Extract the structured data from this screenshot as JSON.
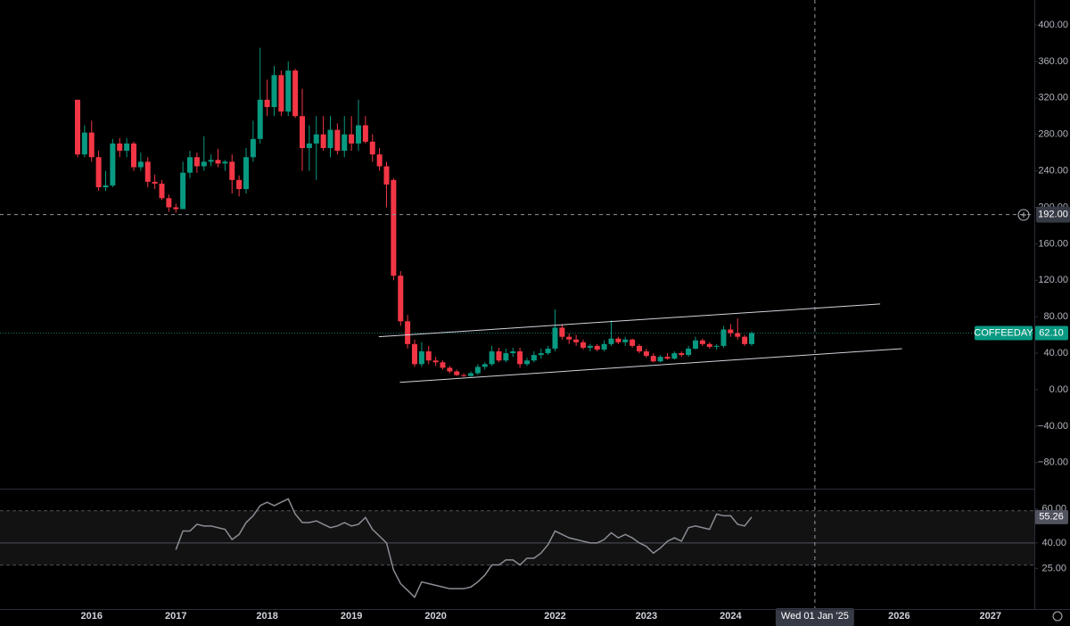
{
  "chart_data": [
    {
      "type": "candlestick",
      "symbol": "COFFEEDAY",
      "categories": [
        null,
        null,
        "2016",
        null,
        null,
        null,
        null,
        null,
        null,
        null,
        null,
        null,
        null,
        null,
        "2017",
        null,
        null,
        null,
        null,
        null,
        null,
        null,
        null,
        null,
        null,
        null,
        null,
        "2018",
        null,
        null,
        null,
        null,
        null,
        null,
        null,
        null,
        null,
        null,
        null,
        "2019",
        null,
        null,
        null,
        null,
        null,
        null,
        null,
        null,
        null,
        null,
        null,
        "2020",
        null,
        null,
        null,
        null,
        null,
        null,
        null,
        null,
        null,
        null,
        null,
        null,
        null,
        null,
        null,
        null,
        "2022",
        null,
        null,
        null,
        null,
        null,
        null,
        null,
        null,
        null,
        null,
        null,
        null,
        "2023",
        null,
        null,
        null,
        null,
        null,
        null,
        null,
        null,
        null,
        null,
        null,
        "2024",
        null,
        null,
        null,
        null,
        null,
        null,
        null,
        null,
        null,
        null,
        null,
        "Wed 01 Jan '25",
        null,
        null,
        null,
        null,
        null,
        null,
        null,
        null,
        null,
        null,
        null,
        "2026",
        null,
        null,
        null,
        null,
        null,
        null,
        null,
        null,
        null,
        null,
        null,
        null,
        "2027"
      ],
      "open": [
        318,
        258,
        282,
        255,
        222,
        224,
        270,
        262,
        270,
        244,
        250,
        228,
        226,
        210,
        200,
        198,
        238,
        255,
        245,
        250,
        252,
        248,
        250,
        230,
        220,
        255,
        275,
        318,
        310,
        345,
        305,
        350,
        300,
        265,
        270,
        280,
        265,
        285,
        262,
        280,
        270,
        290,
        272,
        258,
        245,
        230,
        125,
        75,
        50,
        28,
        42,
        32,
        30,
        24,
        20,
        16,
        15,
        18,
        25,
        28,
        42,
        32,
        40,
        42,
        28,
        32,
        38,
        40,
        45,
        68,
        58,
        55,
        52,
        46,
        48,
        44,
        50,
        56,
        52,
        55,
        48,
        42,
        37,
        31,
        36,
        34,
        40,
        38,
        45,
        54,
        50,
        47,
        48,
        66,
        62,
        58,
        50,
        null,
        null,
        null,
        null,
        null,
        null,
        null,
        null,
        null,
        null,
        null,
        null,
        null,
        null,
        null,
        null,
        null,
        null,
        null,
        null,
        null,
        null,
        null,
        null,
        null,
        null,
        null,
        null,
        null,
        null,
        null,
        null,
        null,
        null
      ],
      "high": [
        318,
        290,
        295,
        262,
        240,
        275,
        276,
        276,
        272,
        260,
        255,
        236,
        230,
        214,
        204,
        250,
        262,
        260,
        278,
        258,
        264,
        252,
        258,
        235,
        265,
        295,
        375,
        340,
        355,
        350,
        360,
        352,
        330,
        290,
        300,
        300,
        300,
        292,
        300,
        300,
        318,
        300,
        280,
        265,
        250,
        232,
        130,
        82,
        55,
        52,
        48,
        36,
        32,
        26,
        22,
        18,
        20,
        28,
        30,
        48,
        46,
        45,
        46,
        46,
        35,
        42,
        45,
        48,
        88,
        72,
        62,
        60,
        55,
        50,
        50,
        54,
        76,
        58,
        58,
        56,
        50,
        45,
        40,
        38,
        40,
        42,
        42,
        48,
        58,
        56,
        52,
        50,
        70,
        72,
        78,
        60,
        64,
        null,
        null,
        null,
        null,
        null,
        null,
        null,
        null,
        null,
        null,
        null,
        null,
        null,
        null,
        null,
        null,
        null,
        null,
        null,
        null,
        null,
        null,
        null,
        null,
        null,
        null,
        null,
        null,
        null,
        null,
        null,
        null,
        null,
        null
      ],
      "low": [
        255,
        255,
        250,
        218,
        218,
        222,
        255,
        255,
        240,
        240,
        222,
        220,
        208,
        195,
        194,
        198,
        232,
        238,
        240,
        245,
        244,
        240,
        215,
        212,
        215,
        250,
        270,
        300,
        300,
        300,
        300,
        298,
        240,
        240,
        230,
        262,
        255,
        258,
        255,
        262,
        262,
        270,
        250,
        240,
        200,
        120,
        70,
        45,
        25,
        25,
        28,
        26,
        22,
        18,
        15,
        14,
        14,
        16,
        22,
        26,
        30,
        30,
        36,
        24,
        26,
        30,
        34,
        38,
        42,
        55,
        50,
        48,
        44,
        42,
        42,
        42,
        48,
        50,
        48,
        46,
        40,
        35,
        30,
        30,
        33,
        33,
        36,
        36,
        44,
        48,
        45,
        44,
        46,
        58,
        55,
        48,
        48,
        null,
        null,
        null,
        null,
        null,
        null,
        null,
        null,
        null,
        null,
        null,
        null,
        null,
        null,
        null,
        null,
        null,
        null,
        null,
        null,
        null,
        null,
        null,
        null,
        null,
        null,
        null,
        null,
        null,
        null,
        null,
        null,
        null,
        null
      ],
      "close": [
        258,
        282,
        255,
        222,
        224,
        270,
        262,
        270,
        244,
        250,
        228,
        226,
        210,
        200,
        198,
        238,
        255,
        245,
        250,
        252,
        248,
        250,
        230,
        220,
        255,
        275,
        318,
        310,
        345,
        305,
        350,
        300,
        265,
        270,
        280,
        265,
        285,
        262,
        280,
        270,
        290,
        272,
        258,
        245,
        225,
        125,
        75,
        50,
        28,
        42,
        32,
        30,
        24,
        20,
        16,
        15,
        18,
        25,
        28,
        42,
        32,
        40,
        42,
        28,
        32,
        38,
        40,
        45,
        68,
        58,
        55,
        52,
        46,
        48,
        44,
        50,
        56,
        52,
        55,
        48,
        42,
        37,
        31,
        36,
        34,
        40,
        38,
        45,
        54,
        50,
        47,
        48,
        66,
        62,
        58,
        50,
        62.1,
        null,
        null,
        null,
        null,
        null,
        null,
        null,
        null,
        null,
        null,
        null,
        null,
        null,
        null,
        null,
        null,
        null,
        null,
        null,
        null,
        null,
        null,
        null,
        null,
        null,
        null,
        null,
        null,
        null,
        null,
        null,
        null,
        null,
        null
      ],
      "last_label": "62.10",
      "up_color": "#089981",
      "down_color": "#f23645",
      "ylim": [
        -108.6,
        427.4
      ],
      "yticks": [
        {
          "value": 400,
          "label": "400.00"
        },
        {
          "value": 360,
          "label": "360.00"
        },
        {
          "value": 320,
          "label": "320.00"
        },
        {
          "value": 280,
          "label": "280.00"
        },
        {
          "value": 240,
          "label": "240.00"
        },
        {
          "value": 200,
          "label": "200.00"
        },
        {
          "value": 160,
          "label": "160.00"
        },
        {
          "value": 120,
          "label": "120.00"
        },
        {
          "value": 80,
          "label": "80.00"
        },
        {
          "value": 40,
          "label": "40.00"
        },
        {
          "value": 0,
          "label": "0.00"
        },
        {
          "value": -40,
          "label": "−40.00"
        },
        {
          "value": -80,
          "label": "−80.00"
        }
      ],
      "trendlines": [
        {
          "x": [
            42.9,
            114.3
          ],
          "y": [
            58,
            94
          ]
        },
        {
          "x": [
            45.9,
            117.4
          ],
          "y": [
            8,
            45
          ]
        }
      ],
      "crosshair": {
        "y": 192,
        "y_label": "192.00"
      }
    },
    {
      "type": "line",
      "color": "#8a8d94",
      "values": [
        null,
        null,
        null,
        null,
        null,
        null,
        null,
        null,
        null,
        null,
        null,
        null,
        null,
        null,
        36,
        47,
        47,
        51,
        50,
        50,
        49,
        48,
        42,
        45,
        52,
        56,
        62,
        64,
        62,
        64,
        66,
        57,
        52,
        52,
        53,
        51,
        49,
        50,
        52,
        50,
        51,
        55,
        48,
        44,
        40,
        24,
        16,
        12,
        8,
        17,
        16,
        15,
        14,
        13,
        13,
        13,
        14,
        17,
        21,
        27,
        27,
        30,
        30,
        27,
        31,
        31,
        34,
        39,
        47,
        45,
        43,
        42,
        41,
        40,
        40,
        42,
        46,
        43,
        45,
        43,
        40,
        38,
        34,
        37,
        41,
        43,
        41,
        49,
        50,
        49,
        48,
        57,
        56,
        56,
        51,
        50,
        55.26,
        null,
        null,
        null,
        null,
        null,
        null,
        null,
        null,
        null,
        null,
        null,
        null,
        null,
        null,
        null,
        null,
        null,
        null,
        null,
        null,
        null,
        null,
        null,
        null,
        null,
        null,
        null,
        null,
        null,
        null,
        null,
        null,
        null,
        null
      ],
      "last_label": "55.26",
      "ylim": [
        1,
        72
      ],
      "yticks": [
        {
          "value": 60,
          "label": "60.00"
        },
        {
          "value": 40,
          "label": "40.00"
        },
        {
          "value": 25,
          "label": "25.00"
        }
      ],
      "band": [
        27,
        59
      ],
      "midline": 40
    }
  ]
}
